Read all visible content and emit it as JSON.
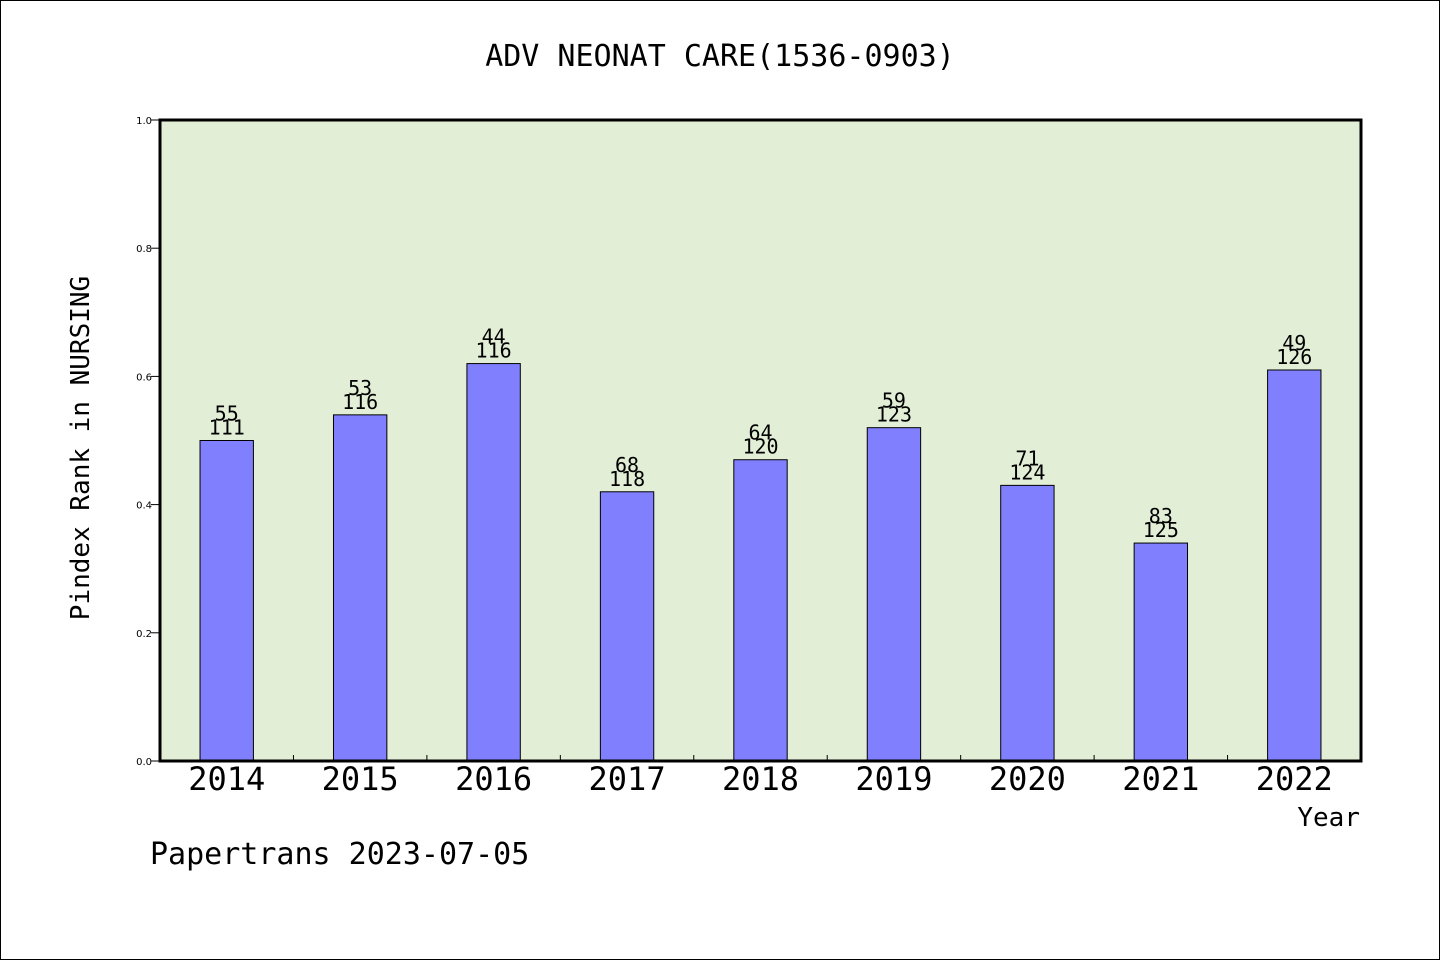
{
  "chart_data": {
    "type": "bar",
    "title": "ADV NEONAT CARE(1536-0903)",
    "xlabel": "Year",
    "ylabel": "Pindex Rank in NURSING",
    "footer": "Papertrans 2023-07-05",
    "ylim": [
      0,
      1.0
    ],
    "yticks": [
      "0.0",
      "0.2",
      "0.4",
      "0.6",
      "0.8",
      "1.0"
    ],
    "categories": [
      "2014",
      "2015",
      "2016",
      "2017",
      "2018",
      "2019",
      "2020",
      "2021",
      "2022"
    ],
    "values": [
      0.5,
      0.54,
      0.62,
      0.42,
      0.47,
      0.52,
      0.43,
      0.34,
      0.61
    ],
    "rank_labels": [
      "55",
      "53",
      "44",
      "68",
      "64",
      "59",
      "71",
      "83",
      "49"
    ],
    "total_labels": [
      "111",
      "116",
      "116",
      "118",
      "120",
      "123",
      "124",
      "125",
      "126"
    ],
    "grid": false,
    "colors": {
      "plot_background": "#e2efd6",
      "bar_fill": "#8080ff",
      "axis": "#000000"
    }
  }
}
